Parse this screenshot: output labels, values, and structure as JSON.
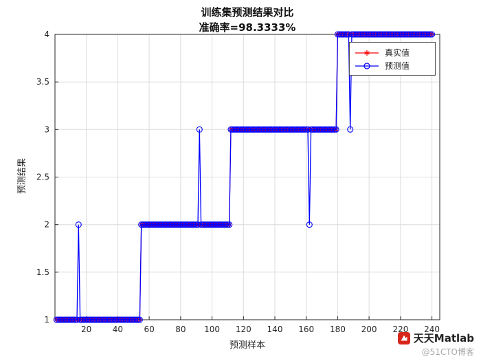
{
  "chart_data": {
    "type": "line",
    "title": "训练集预测结果对比",
    "subtitle": "准确率=98.3333%",
    "xlabel": "预测样本",
    "ylabel": "预测结果",
    "xlim": [
      0,
      245
    ],
    "ylim": [
      1,
      4
    ],
    "xticks": [
      20,
      40,
      60,
      80,
      100,
      120,
      140,
      160,
      180,
      200,
      220,
      240
    ],
    "yticks": [
      1,
      1.5,
      2,
      2.5,
      3,
      3.5,
      4
    ],
    "grid": true,
    "axis_color": "#262626",
    "grid_color": "#dcdcdc",
    "n_samples": 240,
    "series": [
      {
        "name": "真实值",
        "color": "#ff0000",
        "marker": "asterisk"
      },
      {
        "name": "预测值",
        "color": "#0000ff",
        "marker": "circle"
      }
    ],
    "class_segments": [
      {
        "start": 1,
        "end": 54,
        "value": 1
      },
      {
        "start": 55,
        "end": 111,
        "value": 2
      },
      {
        "start": 112,
        "end": 179,
        "value": 3
      },
      {
        "start": 180,
        "end": 240,
        "value": 4
      }
    ],
    "prediction_errors": [
      {
        "sample": 15,
        "predicted": 2
      },
      {
        "sample": 92,
        "predicted": 3
      },
      {
        "sample": 162,
        "predicted": 2
      },
      {
        "sample": 188,
        "predicted": 3
      }
    ],
    "legend": {
      "position": "top-right"
    }
  },
  "watermark": {
    "name": "天天Matlab",
    "handle": "@51CTO博客",
    "logo_color": "#d8261c"
  }
}
